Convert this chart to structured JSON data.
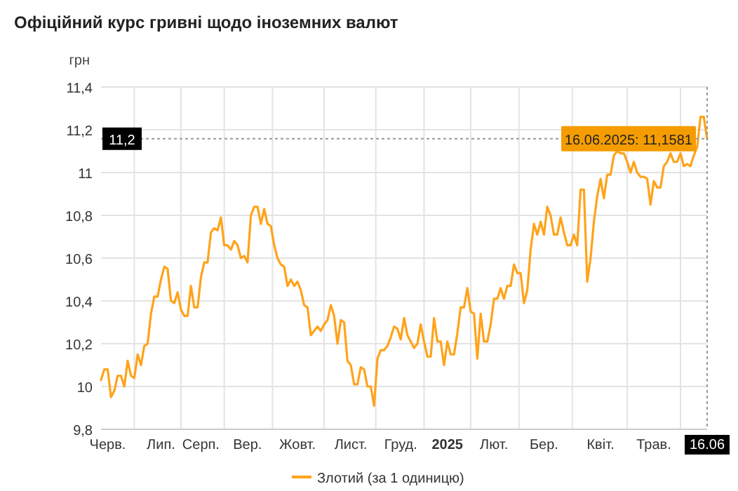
{
  "chart_data": {
    "type": "line",
    "title": "Офіційний курс гривні щодо іноземних валют",
    "ylabel": "грн",
    "categories": [
      null,
      null,
      "Черв.",
      null,
      null,
      null,
      null,
      null,
      null,
      null,
      null,
      null,
      null,
      null,
      null,
      null,
      null,
      null,
      "Лип.",
      null,
      null,
      null,
      null,
      null,
      null,
      null,
      null,
      null,
      null,
      null,
      "Серп.",
      null,
      null,
      null,
      null,
      null,
      null,
      null,
      null,
      null,
      null,
      null,
      null,
      null,
      "Вер.",
      null,
      null,
      null,
      null,
      null,
      null,
      null,
      null,
      null,
      null,
      null,
      null,
      null,
      null,
      "Жовт.",
      null,
      null,
      null,
      null,
      null,
      null,
      null,
      null,
      null,
      null,
      null,
      null,
      null,
      null,
      null,
      "Лист.",
      null,
      null,
      null,
      null,
      null,
      null,
      null,
      null,
      null,
      null,
      null,
      null,
      null,
      null,
      "Груд.",
      null,
      null,
      null,
      null,
      null,
      null,
      null,
      null,
      null,
      null,
      null,
      null,
      null,
      "2025",
      null,
      null,
      null,
      null,
      null,
      null,
      null,
      null,
      null,
      null,
      null,
      null,
      null,
      "Лют.",
      null,
      null,
      null,
      null,
      null,
      null,
      null,
      null,
      null,
      null,
      null,
      null,
      null,
      null,
      "Бер.",
      null,
      null,
      null,
      null,
      null,
      null,
      null,
      null,
      null,
      null,
      null,
      null,
      null,
      null,
      null,
      null,
      "Квіт.",
      null,
      null,
      null,
      null,
      null,
      null,
      null,
      null,
      null,
      null,
      null,
      null,
      null,
      null,
      null,
      "Трав.",
      null,
      null,
      null,
      null,
      null,
      null,
      null,
      null,
      null,
      null,
      null,
      null,
      null,
      null,
      null,
      "16.06"
    ],
    "series": [
      {
        "name": "Злотий (за 1 одиницю)",
        "color": "#ffa31a",
        "values": [
          10.03,
          10.08,
          10.08,
          9.95,
          9.98,
          10.05,
          10.05,
          10.0,
          10.12,
          10.05,
          10.04,
          10.15,
          10.1,
          10.19,
          10.2,
          10.34,
          10.42,
          10.42,
          10.5,
          10.56,
          10.55,
          10.4,
          10.39,
          10.44,
          10.36,
          10.33,
          10.33,
          10.47,
          10.37,
          10.37,
          10.51,
          10.58,
          10.58,
          10.72,
          10.74,
          10.73,
          10.79,
          10.66,
          10.66,
          10.64,
          10.68,
          10.66,
          10.6,
          10.61,
          10.58,
          10.8,
          10.84,
          10.84,
          10.76,
          10.83,
          10.76,
          10.75,
          10.66,
          10.6,
          10.57,
          10.56,
          10.47,
          10.5,
          10.47,
          10.49,
          10.45,
          10.38,
          10.37,
          10.24,
          10.26,
          10.28,
          10.26,
          10.29,
          10.31,
          10.38,
          10.33,
          10.2,
          10.31,
          10.3,
          10.12,
          10.1,
          10.01,
          10.01,
          10.09,
          10.08,
          10.0,
          10.0,
          9.91,
          10.13,
          10.17,
          10.17,
          10.19,
          10.23,
          10.28,
          10.27,
          10.22,
          10.32,
          10.24,
          10.21,
          10.18,
          10.2,
          10.29,
          10.21,
          10.14,
          10.14,
          10.32,
          10.21,
          10.21,
          10.1,
          10.21,
          10.15,
          10.15,
          10.25,
          10.37,
          10.37,
          10.46,
          10.35,
          10.34,
          10.13,
          10.34,
          10.21,
          10.21,
          10.29,
          10.41,
          10.41,
          10.46,
          10.41,
          10.47,
          10.47,
          10.57,
          10.53,
          10.53,
          10.39,
          10.45,
          10.64,
          10.76,
          10.71,
          10.77,
          10.71,
          10.84,
          10.8,
          10.71,
          10.71,
          10.79,
          10.72,
          10.66,
          10.66,
          10.71,
          10.66,
          10.92,
          10.92,
          10.49,
          10.6,
          10.77,
          10.89,
          10.97,
          10.88,
          10.99,
          10.99,
          11.08,
          11.1,
          11.09,
          11.09,
          11.05,
          11.0,
          11.05,
          11.0,
          10.98,
          10.98,
          10.97,
          10.85,
          10.96,
          10.93,
          10.93,
          11.03,
          11.05,
          11.09,
          11.05,
          11.05,
          11.09,
          11.03,
          11.04,
          11.03,
          11.08,
          11.12,
          11.26,
          11.26,
          11.1581
        ]
      }
    ],
    "ylim": [
      9.8,
      11.4
    ],
    "yticks": [
      {
        "value": 9.8,
        "label": "9,8"
      },
      {
        "value": 10,
        "label": "10"
      },
      {
        "value": 10.2,
        "label": "10,2"
      },
      {
        "value": 10.4,
        "label": "10,4"
      },
      {
        "value": 10.6,
        "label": "10,6"
      },
      {
        "value": 10.8,
        "label": "10,8"
      },
      {
        "value": 11,
        "label": "11"
      },
      {
        "value": 11.2,
        "label": "11,2"
      },
      {
        "value": 11.4,
        "label": "11,4"
      }
    ],
    "grid": true,
    "legend": "bottom",
    "ref_lines": [
      {
        "axis": "y",
        "value": 11.1581,
        "label": "11,2",
        "line_style": "dotted",
        "color": "#999999"
      },
      {
        "axis": "x",
        "value": "16.06",
        "line_style": "dotted",
        "color": "#999999"
      }
    ],
    "annotations": [
      {
        "text": "16.06.2025: 11,1581",
        "x": "16.06",
        "y": 11.1581
      }
    ]
  }
}
